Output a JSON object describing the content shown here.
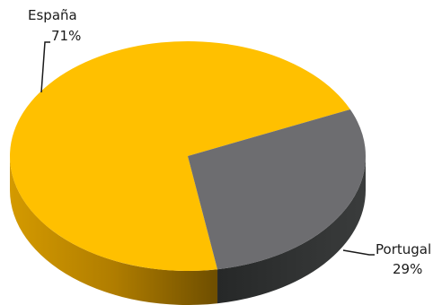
{
  "chart_data": {
    "type": "pie",
    "variant": "3d",
    "categories": [
      "España",
      "Portugal"
    ],
    "values": [
      71,
      29
    ],
    "value_labels": [
      "71%",
      "29%"
    ],
    "colors": [
      "#FFC000",
      "#6D6D70"
    ],
    "side_colors": [
      "#B98200",
      "#2E3030"
    ],
    "legend": "none"
  }
}
